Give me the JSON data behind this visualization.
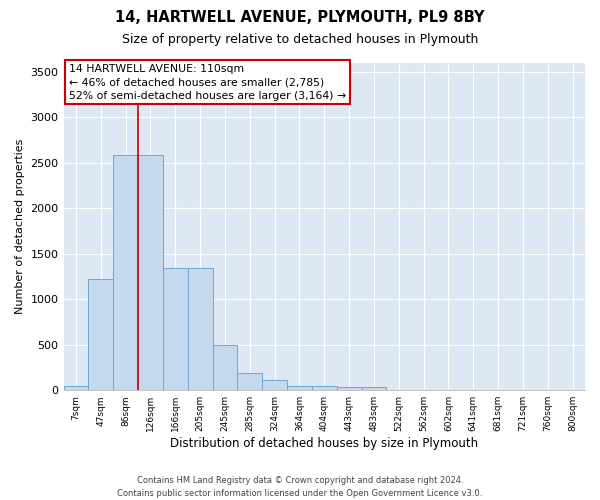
{
  "title_line1": "14, HARTWELL AVENUE, PLYMOUTH, PL9 8BY",
  "title_line2": "Size of property relative to detached houses in Plymouth",
  "xlabel": "Distribution of detached houses by size in Plymouth",
  "ylabel": "Number of detached properties",
  "categories": [
    "7sqm",
    "47sqm",
    "86sqm",
    "126sqm",
    "166sqm",
    "205sqm",
    "245sqm",
    "285sqm",
    "324sqm",
    "364sqm",
    "404sqm",
    "443sqm",
    "483sqm",
    "522sqm",
    "562sqm",
    "602sqm",
    "641sqm",
    "681sqm",
    "721sqm",
    "760sqm",
    "800sqm"
  ],
  "bar_values": [
    50,
    1220,
    2580,
    2580,
    1340,
    1340,
    500,
    190,
    110,
    50,
    50,
    30,
    30,
    0,
    0,
    0,
    0,
    0,
    0,
    0,
    0
  ],
  "bar_color": "#c5d9ee",
  "bar_edge_color": "#6fa8d4",
  "vline_position": 2.5,
  "vline_color": "#cc0000",
  "annotation_text": "14 HARTWELL AVENUE: 110sqm\n← 46% of detached houses are smaller (2,785)\n52% of semi-detached houses are larger (3,164) →",
  "annotation_box_edgecolor": "#cc0000",
  "ylim": [
    0,
    3600
  ],
  "yticks": [
    0,
    500,
    1000,
    1500,
    2000,
    2500,
    3000,
    3500
  ],
  "background_color": "#dde8f4",
  "grid_color": "#ffffff",
  "footer_line1": "Contains HM Land Registry data © Crown copyright and database right 2024.",
  "footer_line2": "Contains public sector information licensed under the Open Government Licence v3.0."
}
